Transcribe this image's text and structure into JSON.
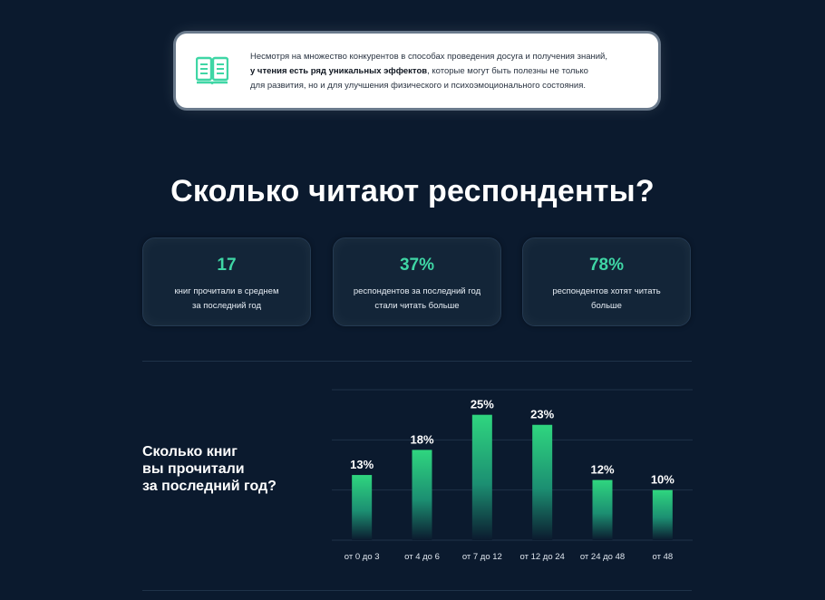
{
  "intro": {
    "line1": "Несмотря на множество конкурентов в способах проведения досуга и получения знаний,",
    "line2_bold": "у чтения есть ряд уникальных эффектов",
    "line2_rest": ", которые могут быть полезны не только",
    "line3": "для развития, но и для улучшения физического и психоэмоционального состояния.",
    "icon": "open-book-icon"
  },
  "section_title": "Сколько читают респонденты?",
  "stats": [
    {
      "value": "17",
      "caption": "книг прочитали в среднем\nза последний год"
    },
    {
      "value": "37%",
      "caption": "респондентов за последний год\nстали читать больше"
    },
    {
      "value": "78%",
      "caption": "респондентов хотят читать\nбольше"
    }
  ],
  "question": "Сколько книг\nвы прочитали\nза последний год?",
  "colors": {
    "background": "#0b1a2e",
    "accent": "#3fd6a5",
    "bar_top": "#2fd67f",
    "card": "#132538"
  },
  "chart_data": {
    "type": "bar",
    "categories": [
      "от 0 до 3",
      "от 4 до 6",
      "от 7 до 12",
      "от 12 до 24",
      "от 24 до 48",
      "от 48"
    ],
    "values": [
      13,
      18,
      25,
      23,
      12,
      10
    ],
    "value_labels": [
      "13%",
      "18%",
      "25%",
      "23%",
      "12%",
      "10%"
    ],
    "unit": "%",
    "ylim": [
      0,
      30
    ],
    "grid": true,
    "legend": "none",
    "title": "",
    "xlabel": "",
    "ylabel": ""
  }
}
